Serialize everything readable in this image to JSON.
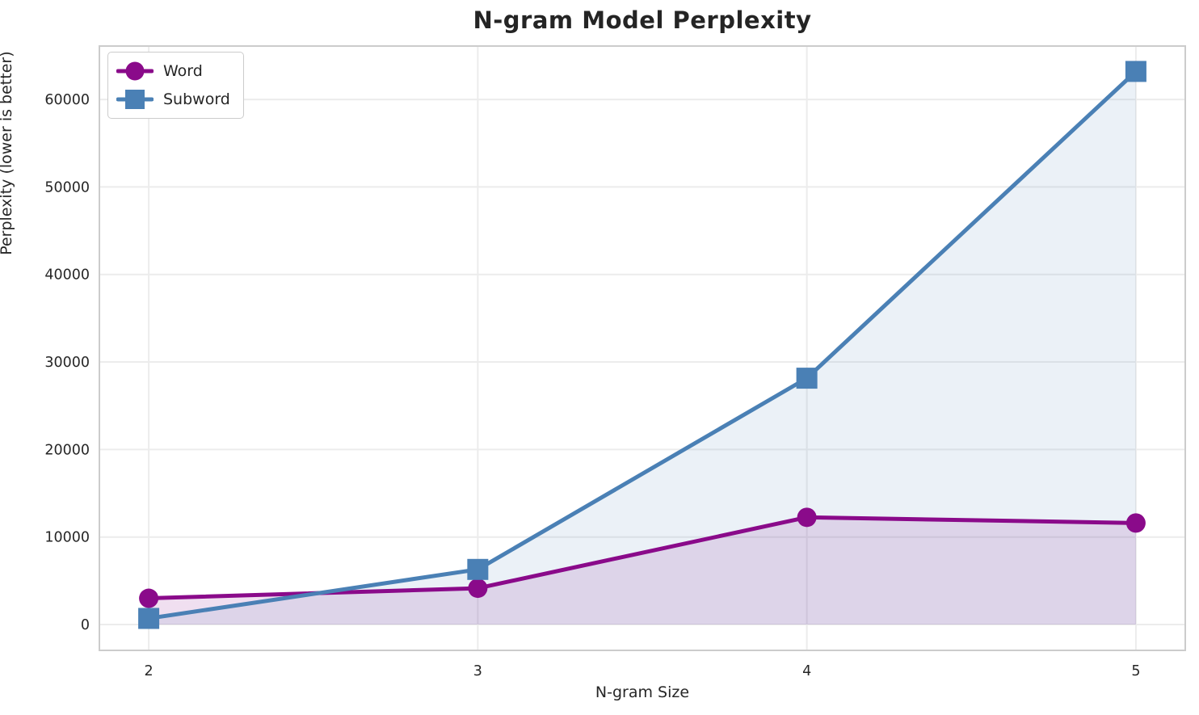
{
  "chart_data": {
    "type": "line",
    "title": "N-gram Model Perplexity",
    "xlabel": "N-gram Size",
    "ylabel": "Perplexity (lower is better)",
    "x": [
      2,
      3,
      4,
      5
    ],
    "series": [
      {
        "name": "Word",
        "values": [
          3000,
          4150,
          12250,
          11600
        ],
        "color": "#8A0A8A",
        "marker": "circle",
        "fill_opacity": 0.13
      },
      {
        "name": "Subword",
        "values": [
          700,
          6300,
          28150,
          63200
        ],
        "color": "#4A80B5",
        "marker": "square",
        "fill_opacity": 0.11
      }
    ],
    "xticks": [
      2,
      3,
      4,
      5
    ],
    "xtick_labels": [
      "2",
      "3",
      "4",
      "5"
    ],
    "yticks": [
      0,
      10000,
      20000,
      30000,
      40000,
      50000,
      60000
    ],
    "ytick_labels": [
      "0",
      "10000",
      "20000",
      "30000",
      "40000",
      "50000",
      "60000"
    ],
    "xlim": [
      1.85,
      5.15
    ],
    "ylim": [
      -2950,
      66100
    ],
    "grid": true,
    "area_fill_baseline": 0,
    "legend_position": "upper left",
    "grid_color": "#ececec",
    "spine_color": "#cccccc",
    "text_color": "#262626"
  }
}
